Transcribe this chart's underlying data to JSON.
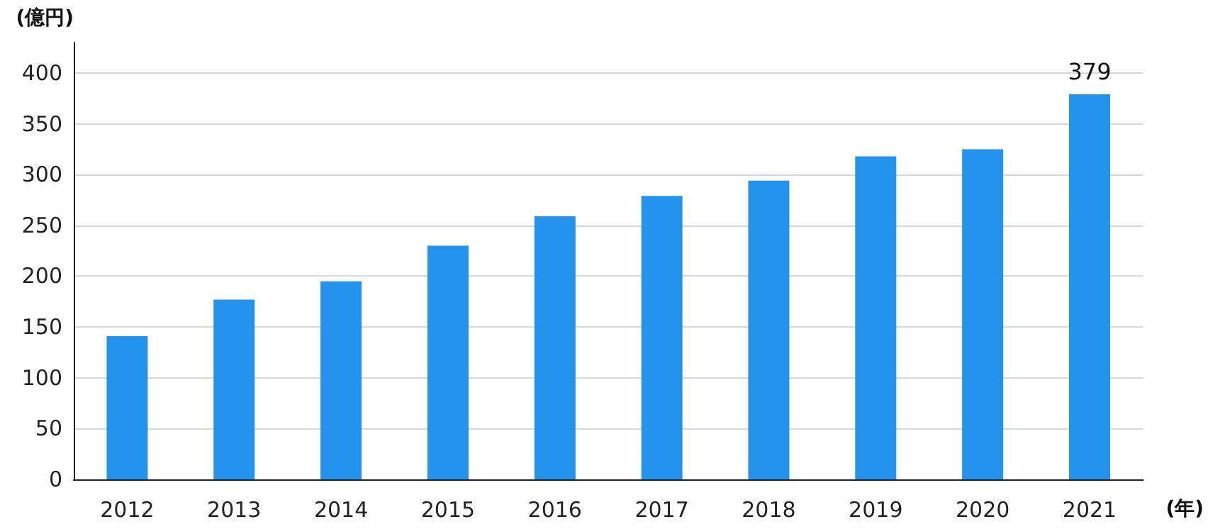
{
  "chart_data": {
    "type": "bar",
    "ylabel": "(億円)",
    "xlabel": "(年)",
    "categories": [
      "2012",
      "2013",
      "2014",
      "2015",
      "2016",
      "2017",
      "2018",
      "2019",
      "2020",
      "2021"
    ],
    "values": [
      141,
      177,
      195,
      230,
      259,
      279,
      294,
      318,
      325,
      379
    ],
    "value_labels": [
      null,
      null,
      null,
      null,
      null,
      null,
      null,
      null,
      null,
      "379"
    ],
    "color": "#2393ee",
    "ylim": [
      0,
      430
    ],
    "yticks": [
      0,
      50,
      100,
      150,
      200,
      250,
      300,
      350,
      400
    ],
    "grid": "y"
  }
}
